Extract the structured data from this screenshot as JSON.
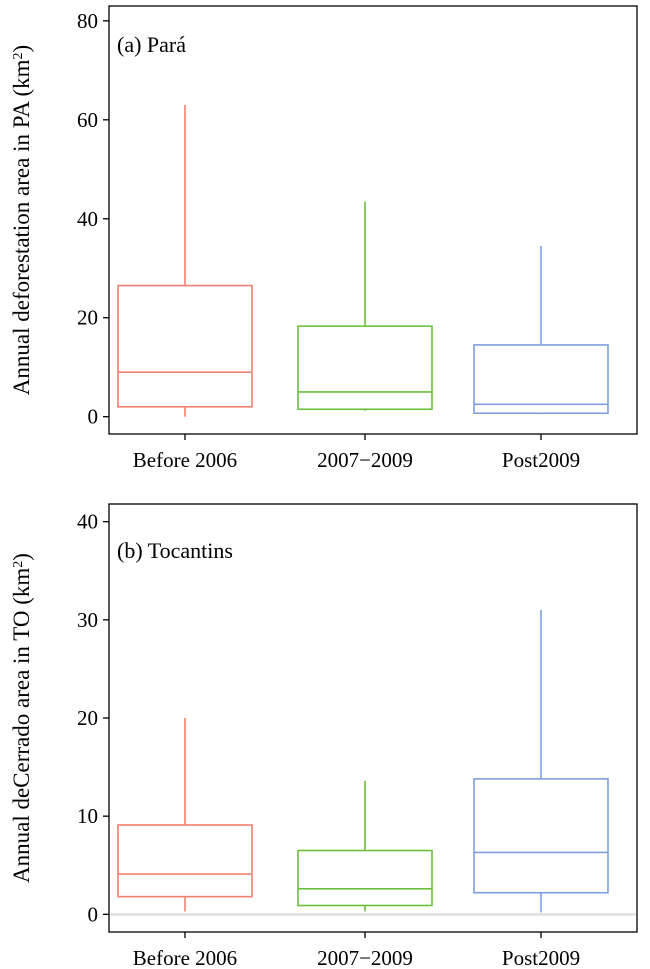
{
  "colors": {
    "before": "#f08070",
    "mid": "#6cbf3c",
    "post": "#7f9ee0",
    "axis": "#000000",
    "zero_line": "#e3e3e3"
  },
  "chart_data": [
    {
      "type": "box",
      "panel_label": "(a) Pará",
      "ylabel": {
        "prefix": "Annual deforestation area in PA (km",
        "sup": "2",
        "suffix": ")"
      },
      "categories": [
        "Before 2006",
        "2007−2009",
        "Post2009"
      ],
      "ylim": [
        -3.5,
        83
      ],
      "yticks": [
        0,
        20,
        40,
        60,
        80
      ],
      "grid": false,
      "zero_line": false,
      "boxes": [
        {
          "category": "Before 2006",
          "min": 0,
          "q1": 2,
          "median": 9,
          "q3": 26.5,
          "max": 63,
          "color": "#f08070"
        },
        {
          "category": "2007−2009",
          "min": 1.2,
          "q1": 1.5,
          "median": 5,
          "q3": 18.3,
          "max": 43.5,
          "color": "#6cbf3c"
        },
        {
          "category": "Post2009",
          "min": 0.5,
          "q1": 0.7,
          "median": 2.5,
          "q3": 14.5,
          "max": 34.5,
          "color": "#7f9ee0"
        }
      ]
    },
    {
      "type": "box",
      "panel_label": "(b) Tocantins",
      "ylabel": {
        "prefix": "Annual deCerrado area in TO (km",
        "sup": "2",
        "suffix": ")"
      },
      "categories": [
        "Before 2006",
        "2007−2009",
        "Post2009"
      ],
      "ylim": [
        -1.8,
        41.8
      ],
      "yticks": [
        0,
        10,
        20,
        30,
        40
      ],
      "grid": false,
      "zero_line": true,
      "boxes": [
        {
          "category": "Before 2006",
          "min": 0.3,
          "q1": 1.8,
          "median": 4.1,
          "q3": 9.1,
          "max": 20,
          "color": "#f08070"
        },
        {
          "category": "2007−2009",
          "min": 0.3,
          "q1": 0.9,
          "median": 2.6,
          "q3": 6.5,
          "max": 13.6,
          "color": "#6cbf3c"
        },
        {
          "category": "Post2009",
          "min": 0.2,
          "q1": 2.2,
          "median": 6.3,
          "q3": 13.8,
          "max": 31,
          "color": "#7f9ee0"
        }
      ]
    }
  ]
}
